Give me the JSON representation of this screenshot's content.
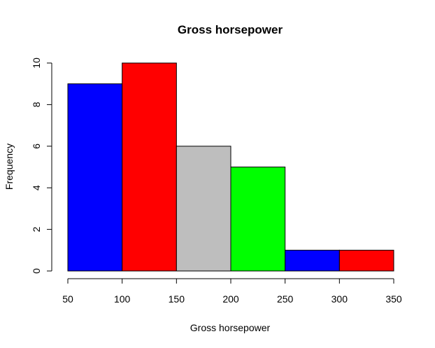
{
  "chart_data": {
    "type": "bar",
    "title": "Gross horsepower",
    "xlabel": "Gross horsepower",
    "ylabel": "Frequency",
    "bins": [
      {
        "start": 50,
        "end": 100,
        "count": 9,
        "color": "#0000ff"
      },
      {
        "start": 100,
        "end": 150,
        "count": 10,
        "color": "#ff0000"
      },
      {
        "start": 150,
        "end": 200,
        "count": 6,
        "color": "#bebebe"
      },
      {
        "start": 200,
        "end": 250,
        "count": 5,
        "color": "#00ff00"
      },
      {
        "start": 250,
        "end": 300,
        "count": 1,
        "color": "#0000ff"
      },
      {
        "start": 300,
        "end": 350,
        "count": 1,
        "color": "#ff0000"
      }
    ],
    "xlim": [
      50,
      350
    ],
    "ylim": [
      0,
      10
    ],
    "xticks": [
      50,
      100,
      150,
      200,
      250,
      300,
      350
    ],
    "yticks": [
      0,
      2,
      4,
      6,
      8,
      10
    ],
    "grid": false,
    "legend": "none"
  }
}
